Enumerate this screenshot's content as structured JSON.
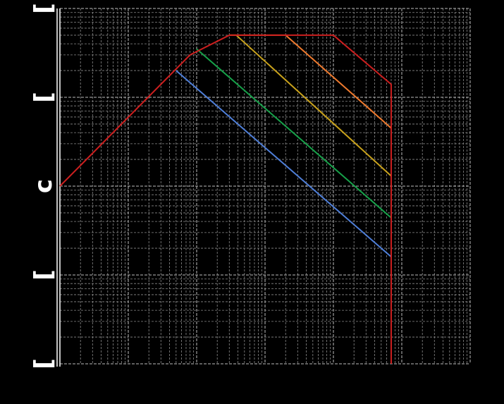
{
  "chart_data": {
    "type": "line",
    "title": "",
    "xlabel": "",
    "ylabel": "",
    "x_scale": "log",
    "y_scale": "log",
    "xlim": [
      0.001,
      1000
    ],
    "ylim": [
      0.01,
      100
    ],
    "grid": true,
    "legend": "none",
    "y_tick_labels": [
      {
        "value": 0.01,
        "label": "["
      },
      {
        "value": 0.1,
        "label": "["
      },
      {
        "value": 1,
        "label": "c"
      },
      {
        "value": 10,
        "label": "["
      },
      {
        "value": 100,
        "label": "["
      }
    ],
    "series": [
      {
        "name": "red",
        "color": "#cc1f1f",
        "x": [
          0.001,
          0.08,
          0.3,
          10,
          70,
          70
        ],
        "y": [
          1,
          30,
          50,
          50,
          14,
          0.01
        ]
      },
      {
        "name": "orange",
        "color": "#ee7a2e",
        "x": [
          0.3,
          2,
          70
        ],
        "y": [
          50,
          50,
          4.5
        ]
      },
      {
        "name": "gold",
        "color": "#c9a21c",
        "x": [
          0.3,
          0.38,
          70
        ],
        "y": [
          50,
          50,
          1.3
        ]
      },
      {
        "name": "green",
        "color": "#17a24a",
        "x": [
          0.1,
          70
        ],
        "y": [
          35,
          0.44
        ]
      },
      {
        "name": "blue",
        "color": "#4f7fd8",
        "x": [
          0.05,
          70
        ],
        "y": [
          20,
          0.16
        ]
      }
    ]
  }
}
